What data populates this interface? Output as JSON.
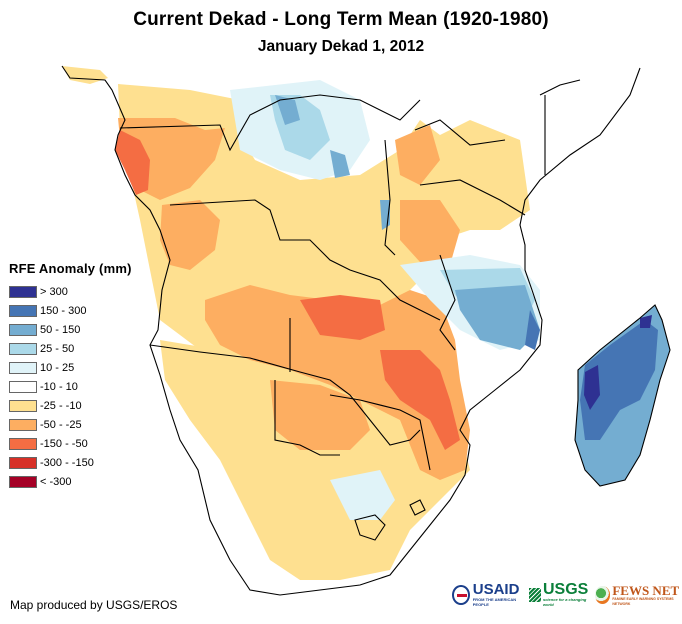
{
  "header": {
    "title": "Current Dekad - Long Term Mean (1920-1980)",
    "subtitle": "January Dekad 1, 2012"
  },
  "legend": {
    "title": "RFE Anomaly (mm)",
    "items": [
      {
        "label": "> 300",
        "color": "#2e3192"
      },
      {
        "label": "150 - 300",
        "color": "#4575b4"
      },
      {
        "label": "50 - 150",
        "color": "#74add1"
      },
      {
        "label": "25 - 50",
        "color": "#abd9e9"
      },
      {
        "label": "10 - 25",
        "color": "#e0f3f8"
      },
      {
        "label": "-10 - 10",
        "color": "#ffffff"
      },
      {
        "label": "-25 - -10",
        "color": "#fee090"
      },
      {
        "label": "-50 - -25",
        "color": "#fdae61"
      },
      {
        "label": "-150 - -50",
        "color": "#f46d43"
      },
      {
        "label": "-300 - -150",
        "color": "#d73027"
      },
      {
        "label": "< -300",
        "color": "#a50026"
      }
    ]
  },
  "footer": {
    "credit": "Map produced by USGS/EROS",
    "logos": {
      "usaid": "USAID",
      "usaid_tagline": "FROM THE AMERICAN PEOPLE",
      "usgs": "USGS",
      "usgs_tagline": "science for a changing world",
      "fewsnet": "FEWS NET",
      "fewsnet_tagline": "FAMINE EARLY WARNING SYSTEMS NETWORK"
    }
  },
  "map": {
    "region": "Central and Southern Africa",
    "class_colors": {
      "gt300": "#2e3192",
      "p150": "#4575b4",
      "p50": "#74add1",
      "p25": "#abd9e9",
      "p10": "#e0f3f8",
      "zero": "#ffffff",
      "m10": "#fee090",
      "m25": "#fdae61",
      "m50": "#f46d43"
    },
    "border_color": "#000000"
  }
}
